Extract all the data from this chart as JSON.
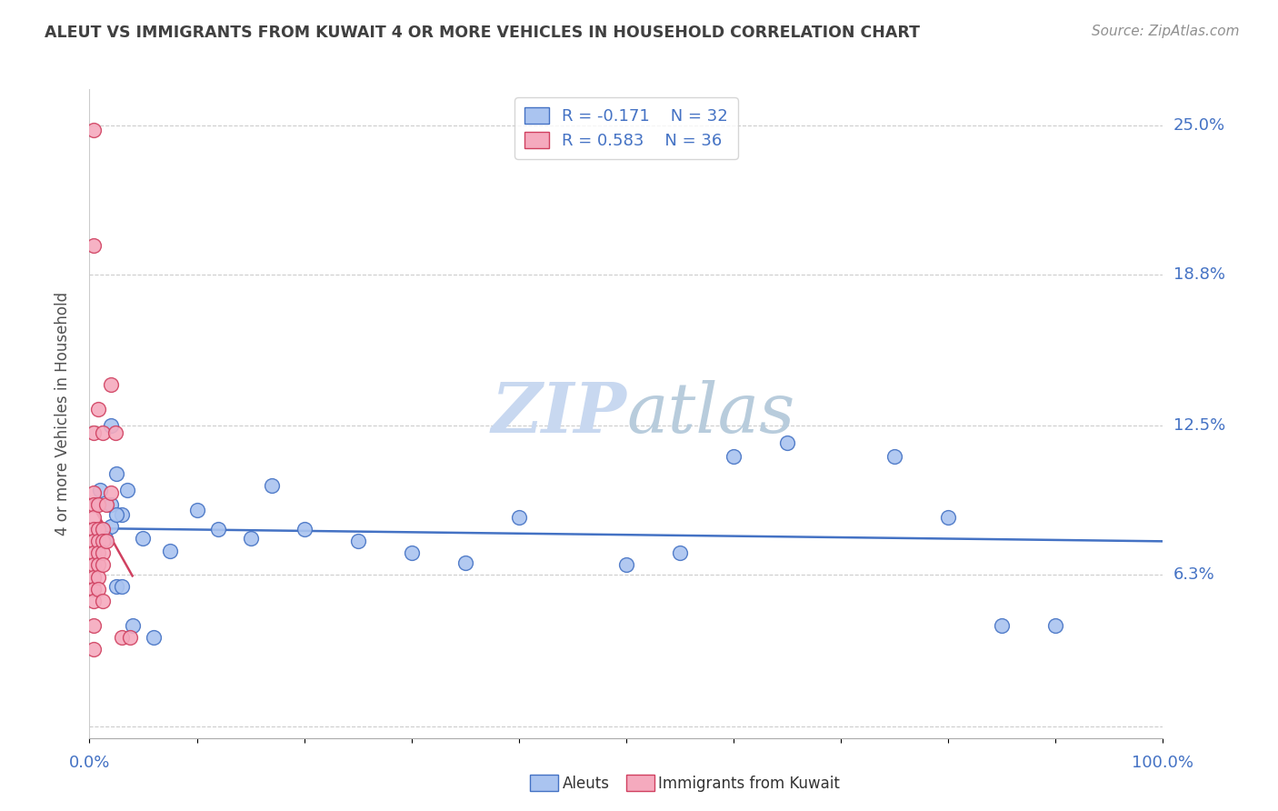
{
  "title": "ALEUT VS IMMIGRANTS FROM KUWAIT 4 OR MORE VEHICLES IN HOUSEHOLD CORRELATION CHART",
  "source": "Source: ZipAtlas.com",
  "ylabel": "4 or more Vehicles in Household",
  "ytick_vals": [
    0.0,
    0.063,
    0.125,
    0.188,
    0.25
  ],
  "ytick_labels": [
    "",
    "6.3%",
    "12.5%",
    "18.8%",
    "25.0%"
  ],
  "xlim": [
    0.0,
    1.0
  ],
  "ylim": [
    -0.005,
    0.265
  ],
  "legend_r1": "-0.171",
  "legend_n1": "32",
  "legend_r2": "0.583",
  "legend_n2": "36",
  "aleut_color": "#aac4f0",
  "kuwait_color": "#f5aabe",
  "trendline_aleut_color": "#4472c4",
  "trendline_kuwait_color": "#d04060",
  "title_color": "#404040",
  "axis_label_color": "#4472c4",
  "source_color": "#909090",
  "watermark_zip_color": "#c8d8f0",
  "watermark_atlas_color": "#c8d8e8",
  "aleuts_x": [
    0.02,
    0.025,
    0.01,
    0.02,
    0.03,
    0.035,
    0.02,
    0.015,
    0.025,
    0.05,
    0.075,
    0.1,
    0.17,
    0.2,
    0.25,
    0.3,
    0.4,
    0.5,
    0.55,
    0.6,
    0.65,
    0.75,
    0.8,
    0.85,
    0.9,
    0.025,
    0.03,
    0.04,
    0.06,
    0.12,
    0.15,
    0.35
  ],
  "aleuts_y": [
    0.125,
    0.105,
    0.098,
    0.092,
    0.088,
    0.098,
    0.083,
    0.078,
    0.088,
    0.078,
    0.073,
    0.09,
    0.1,
    0.082,
    0.077,
    0.072,
    0.087,
    0.067,
    0.072,
    0.112,
    0.118,
    0.112,
    0.087,
    0.042,
    0.042,
    0.058,
    0.058,
    0.042,
    0.037,
    0.082,
    0.078,
    0.068
  ],
  "kuwait_x": [
    0.004,
    0.004,
    0.004,
    0.004,
    0.004,
    0.004,
    0.004,
    0.004,
    0.004,
    0.004,
    0.004,
    0.004,
    0.004,
    0.004,
    0.004,
    0.008,
    0.008,
    0.008,
    0.008,
    0.008,
    0.008,
    0.008,
    0.008,
    0.012,
    0.012,
    0.012,
    0.012,
    0.012,
    0.012,
    0.016,
    0.016,
    0.02,
    0.02,
    0.024,
    0.03,
    0.038
  ],
  "kuwait_y": [
    0.248,
    0.2,
    0.122,
    0.097,
    0.092,
    0.087,
    0.082,
    0.077,
    0.072,
    0.067,
    0.062,
    0.057,
    0.052,
    0.042,
    0.032,
    0.132,
    0.092,
    0.082,
    0.077,
    0.072,
    0.067,
    0.062,
    0.057,
    0.122,
    0.082,
    0.077,
    0.072,
    0.067,
    0.052,
    0.092,
    0.077,
    0.142,
    0.097,
    0.122,
    0.037,
    0.037
  ]
}
